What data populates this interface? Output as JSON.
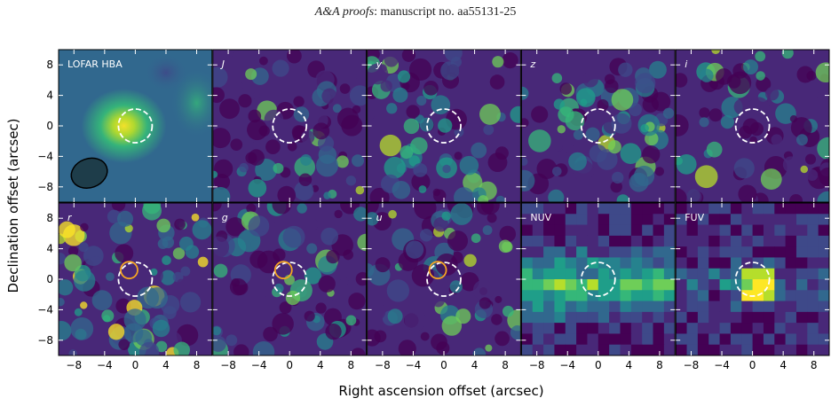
{
  "header": {
    "journal": "A&A proofs",
    "rest": ": manuscript no. aa55131-25"
  },
  "chart_data": {
    "type": "heatmap",
    "xlabel": "Right ascension offset (arcsec)",
    "ylabel": "Declination offset (arcsec)",
    "xlim": [
      -10,
      10
    ],
    "ylim": [
      -10,
      10
    ],
    "xticks": [
      "−8",
      "−4",
      "0",
      "4",
      "8"
    ],
    "yticks": [
      "8",
      "4",
      "0",
      "−4",
      "−8"
    ],
    "panels": [
      {
        "label": "LOFAR HBA",
        "italic": false,
        "style": "lofar",
        "seed": 11
      },
      {
        "label": "J",
        "italic": true,
        "style": "noise",
        "seed": 23
      },
      {
        "label": "y",
        "italic": true,
        "style": "noise",
        "seed": 37
      },
      {
        "label": "z",
        "italic": true,
        "style": "noise",
        "seed": 41
      },
      {
        "label": "i",
        "italic": true,
        "style": "noise",
        "seed": 53
      },
      {
        "label": "r",
        "italic": true,
        "style": "noise-bright",
        "seed": 67
      },
      {
        "label": "g",
        "italic": true,
        "style": "noise",
        "seed": 71
      },
      {
        "label": "u",
        "italic": true,
        "style": "noise",
        "seed": 83
      },
      {
        "label": "NUV",
        "italic": false,
        "style": "pixel",
        "seed": 97
      },
      {
        "label": "FUV",
        "italic": false,
        "style": "pixel-fuv",
        "seed": 101
      }
    ],
    "dashed_circle": {
      "x": 0,
      "y": 0,
      "r": 2.2
    },
    "counterpart_circle": {
      "x": -0.8,
      "y": 1.2,
      "r": 1.1,
      "panels": [
        "r",
        "g",
        "u"
      ]
    },
    "beam": {
      "x": -6,
      "y": -6.2,
      "rx": 2.4,
      "ry": 1.9,
      "angle_deg": -20
    }
  },
  "colors": {
    "cmap": [
      "#440154",
      "#482878",
      "#3e4989",
      "#31688e",
      "#26828e",
      "#1f9e89",
      "#35b779",
      "#6ece58",
      "#b5de2b",
      "#fde725"
    ],
    "counterpart": "#f5a623",
    "dashed": "#ffffff"
  }
}
